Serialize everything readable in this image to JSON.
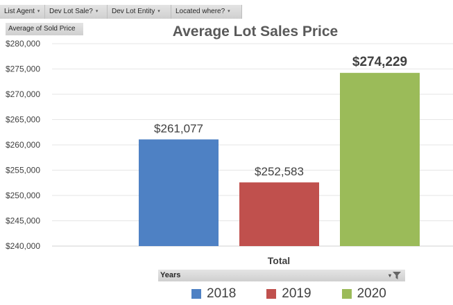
{
  "filters": [
    {
      "label": "List Agent"
    },
    {
      "label": "Dev Lot Sale?"
    },
    {
      "label": "Dev Lot Entity"
    },
    {
      "label": "Located where?"
    }
  ],
  "pivot_value_field": "Average of Sold Price",
  "pivot_axis_field": "Years",
  "colors": {
    "2018": "#4e81c4",
    "2019": "#c0504d",
    "2020": "#9bbb59"
  },
  "chart_data": {
    "type": "bar",
    "title": "Average Lot Sales Price",
    "categories": [
      "Total"
    ],
    "series": [
      {
        "name": "2018",
        "values": [
          261077
        ],
        "label": "$261,077",
        "color": "#4e81c4"
      },
      {
        "name": "2019",
        "values": [
          252583
        ],
        "label": "$252,583",
        "color": "#c0504d"
      },
      {
        "name": "2020",
        "values": [
          274229
        ],
        "label": "$274,229",
        "color": "#9bbb59"
      }
    ],
    "ylim": [
      240000,
      280000
    ],
    "yticks": [
      240000,
      245000,
      250000,
      255000,
      260000,
      265000,
      270000,
      275000,
      280000
    ],
    "ytick_labels": [
      "$240,000",
      "$245,000",
      "$250,000",
      "$255,000",
      "$260,000",
      "$265,000",
      "$270,000",
      "$275,000",
      "$280,000"
    ],
    "grid": true,
    "legend": "bottom"
  }
}
